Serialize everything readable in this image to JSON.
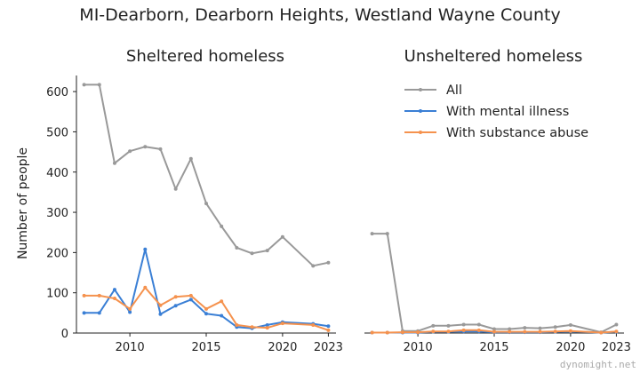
{
  "figure": {
    "suptitle": "MI-Dearborn, Dearborn Heights, Westland Wayne County",
    "ylabel": "Number of people",
    "watermark": "dynomight.net"
  },
  "chart_data": [
    {
      "type": "line",
      "title": "Sheltered homeless",
      "x": [
        2007,
        2008,
        2009,
        2010,
        2011,
        2012,
        2013,
        2014,
        2015,
        2016,
        2017,
        2018,
        2019,
        2020,
        2022,
        2023
      ],
      "xticks": [
        2010,
        2015,
        2020,
        2023
      ],
      "ylim": [
        0,
        640
      ],
      "yticks": [
        0,
        100,
        200,
        300,
        400,
        500,
        600
      ],
      "grid": false,
      "series": [
        {
          "name": "All",
          "color": "#999999",
          "values": [
            617,
            617,
            422,
            452,
            463,
            457,
            358,
            433,
            322,
            265,
            212,
            198,
            205,
            239,
            167,
            175
          ]
        },
        {
          "name": "With mental illness",
          "color": "#3a7fd5",
          "values": [
            50,
            50,
            108,
            52,
            208,
            47,
            68,
            83,
            48,
            43,
            15,
            12,
            20,
            27,
            23,
            17
          ]
        },
        {
          "name": "With substance abuse",
          "color": "#f5924e",
          "values": [
            93,
            93,
            86,
            60,
            113,
            69,
            90,
            93,
            60,
            79,
            20,
            15,
            13,
            24,
            20,
            7
          ]
        }
      ]
    },
    {
      "type": "line",
      "title": "Unsheltered homeless",
      "x": [
        2007,
        2008,
        2009,
        2010,
        2011,
        2012,
        2013,
        2014,
        2015,
        2016,
        2017,
        2018,
        2019,
        2020,
        2022,
        2023
      ],
      "xticks": [
        2010,
        2015,
        2020,
        2023
      ],
      "ylim": [
        0,
        640
      ],
      "grid": false,
      "legend": "top-right",
      "series": [
        {
          "name": "All",
          "color": "#999999",
          "values": [
            247,
            247,
            5,
            5,
            18,
            18,
            21,
            21,
            10,
            10,
            13,
            12,
            15,
            20,
            2,
            21
          ]
        },
        {
          "name": "With mental illness",
          "color": "#3a7fd5",
          "values": [
            1,
            1,
            1,
            1,
            3,
            3,
            4,
            4,
            2,
            2,
            2,
            2,
            3,
            4,
            1,
            3
          ]
        },
        {
          "name": "With substance abuse",
          "color": "#f5924e",
          "values": [
            1,
            1,
            2,
            2,
            4,
            4,
            7,
            7,
            3,
            3,
            3,
            3,
            4,
            5,
            1,
            4
          ]
        }
      ]
    }
  ]
}
